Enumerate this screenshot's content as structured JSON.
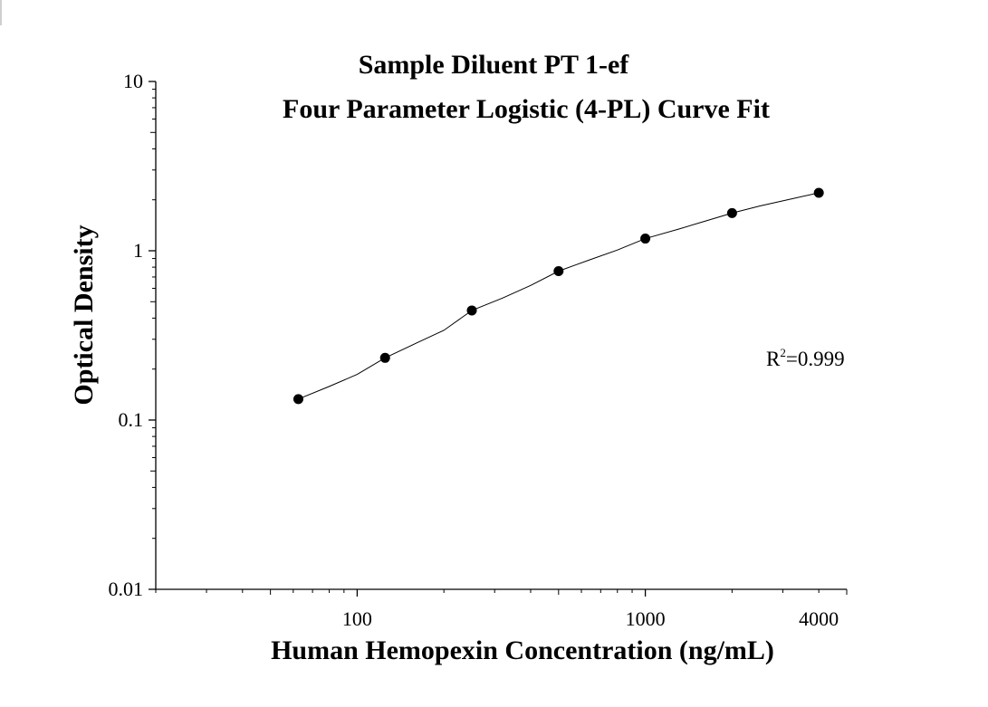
{
  "chart_data": {
    "type": "scatter",
    "title": "Sample Diluent PT 1-ef",
    "subtitle": "Four Parameter Logistic (4-PL) Curve Fit",
    "xlabel": "Human Hemopexin Concentration (ng/mL)",
    "ylabel": "Optical Density",
    "xscale": "log",
    "yscale": "log",
    "xlim": [
      20,
      5000
    ],
    "ylim": [
      0.01,
      10
    ],
    "x_ticks": [
      "100",
      "1000",
      "4000"
    ],
    "x_tick_values": [
      100,
      1000,
      4000
    ],
    "y_ticks": [
      "0.01",
      "0.1",
      "1",
      "10"
    ],
    "y_tick_values": [
      0.01,
      0.1,
      1,
      10
    ],
    "grid": false,
    "series": [
      {
        "x": [
          62.5,
          125,
          250,
          500,
          1000,
          2000,
          4000
        ],
        "y": [
          0.133,
          0.233,
          0.444,
          0.758,
          1.18,
          1.67,
          2.2
        ],
        "marker": "circle",
        "color": "#000000"
      }
    ],
    "fit_curve": {
      "model": "4-PL",
      "x": [
        62.5,
        80,
        100,
        125,
        160,
        200,
        250,
        320,
        400,
        500,
        640,
        800,
        1000,
        1300,
        1600,
        2000,
        2500,
        3200,
        4000
      ],
      "y": [
        0.133,
        0.158,
        0.186,
        0.233,
        0.284,
        0.339,
        0.444,
        0.526,
        0.624,
        0.758,
        0.883,
        1.01,
        1.18,
        1.34,
        1.49,
        1.67,
        1.84,
        2.02,
        2.2
      ],
      "color": "#000000"
    },
    "annotation": {
      "r_label": "R",
      "r_superscript": "2",
      "r_value": "=0.999"
    }
  }
}
